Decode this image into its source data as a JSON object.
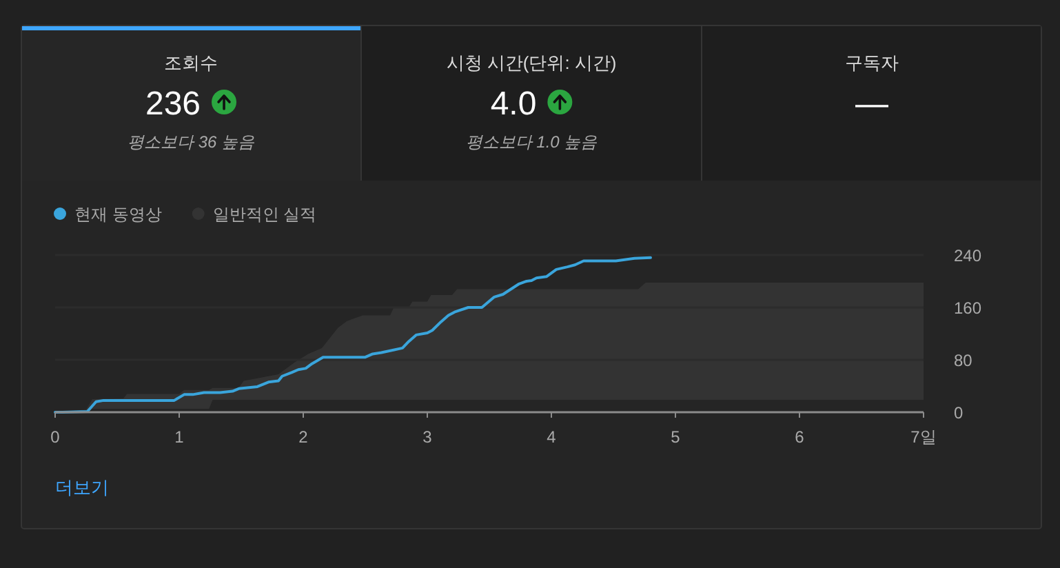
{
  "chart_data": [
    {
      "type": "other",
      "title": "조회수",
      "annotations": [
        "236",
        "평소보다 36 높음"
      ]
    },
    {
      "type": "other",
      "title": "시청 시간(단위: 시간)",
      "annotations": [
        "4.0",
        "평소보다 1.0 높음"
      ]
    },
    {
      "type": "other",
      "title": "구독자",
      "annotations": [
        "—"
      ]
    },
    {
      "type": "line",
      "series": [
        {
          "name": "현재 동영상",
          "type": "line",
          "color": "#3aa5dc",
          "x": [
            0,
            0.06,
            0.26,
            0.33,
            0.39,
            0.96,
            1.04,
            1.11,
            1.2,
            1.33,
            1.43,
            1.48,
            1.63,
            1.72,
            1.8,
            1.83,
            1.91,
            1.96,
            2.02,
            2.07,
            2.16,
            2.5,
            2.56,
            2.63,
            2.8,
            2.85,
            2.91,
            3.0,
            3.04,
            3.11,
            3.17,
            3.22,
            3.33,
            3.44,
            3.54,
            3.61,
            3.74,
            3.8,
            3.84,
            3.88,
            3.96,
            4.04,
            4.13,
            4.19,
            4.26,
            4.52,
            4.59,
            4.67,
            4.8
          ],
          "values": [
            0,
            0,
            1,
            16,
            18,
            18,
            27,
            27,
            30,
            30,
            32,
            36,
            39,
            46,
            48,
            55,
            61,
            65,
            67,
            74,
            84,
            84,
            89,
            91,
            98,
            108,
            118,
            121,
            125,
            138,
            148,
            153,
            160,
            160,
            176,
            180,
            196,
            200,
            201,
            205,
            207,
            218,
            222,
            225,
            231,
            231,
            233,
            235,
            236
          ]
        },
        {
          "name": "일반적인 실적",
          "type": "line",
          "color": "#333333",
          "x": [
            0,
            0.25,
            0.3,
            0.55,
            0.58,
            1.0,
            1.04,
            1.24,
            1.27,
            1.48,
            1.52,
            1.8,
            1.93,
            2.04,
            2.15,
            2.28,
            2.35,
            2.48,
            2.7,
            2.73,
            2.85,
            2.88,
            3.0,
            3.03,
            3.2,
            3.24,
            4.7,
            4.76,
            7
          ],
          "values": [
            null,
            null,
            null,
            null,
            null,
            null,
            null,
            null,
            null,
            null,
            null,
            null,
            null,
            null,
            null,
            null,
            null,
            null,
            null,
            null,
            null,
            null,
            null,
            null,
            null,
            null,
            null,
            null,
            null
          ],
          "lower": [
            0,
            0,
            5,
            5,
            5,
            5,
            5,
            5,
            19,
            19,
            19,
            19,
            19,
            19,
            19,
            19,
            19,
            19,
            19,
            19,
            19,
            19,
            19,
            19,
            19,
            19,
            19,
            19,
            19
          ],
          "upper": [
            0,
            4,
            20,
            21,
            28,
            28,
            34,
            34,
            37,
            37,
            48,
            58,
            76,
            89,
            98,
            129,
            139,
            148,
            148,
            160,
            160,
            169,
            169,
            179,
            179,
            188,
            188,
            198,
            198
          ]
        }
      ],
      "xlim": [
        0,
        7
      ],
      "xticks": [
        0,
        1,
        2,
        3,
        4,
        5,
        6,
        {
          "value": 7,
          "label": "7일"
        }
      ],
      "ylim": [
        0,
        240
      ],
      "yticks": [
        0,
        80,
        160,
        240
      ],
      "grid": "y",
      "legend": "top left",
      "annotations": [
        "더보기"
      ]
    }
  ]
}
